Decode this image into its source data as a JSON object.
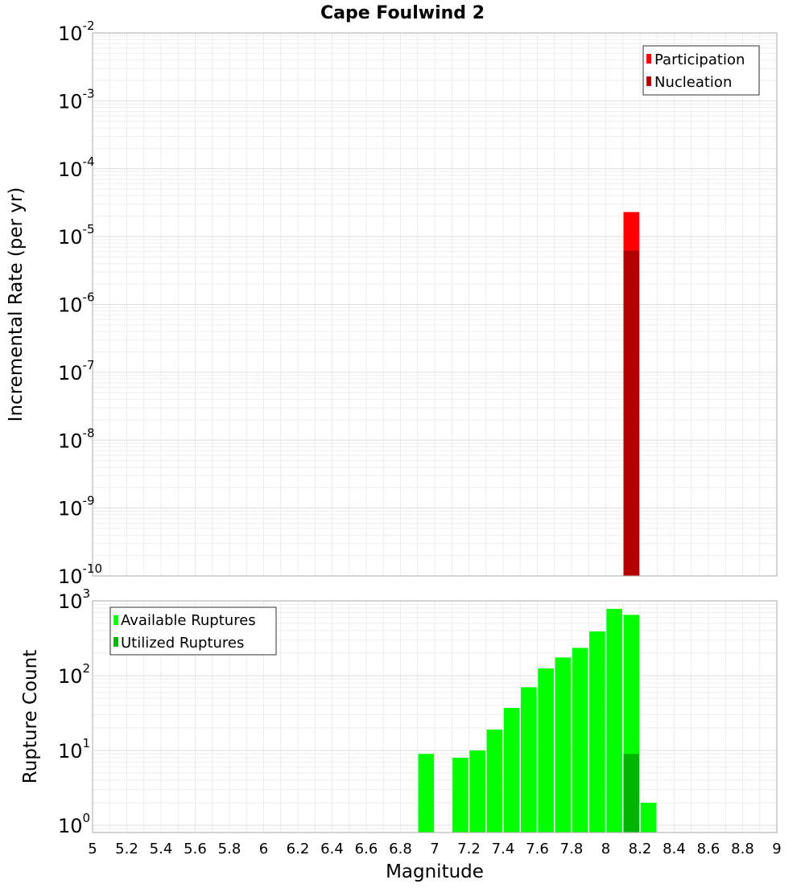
{
  "chart_data": [
    {
      "type": "bar",
      "title": "Cape Foulwind 2",
      "xlabel": "",
      "ylabel": "Incremental Rate (per yr)",
      "yscale": "log",
      "xlim": [
        5,
        9
      ],
      "ylim": [
        1e-10,
        0.01
      ],
      "grid": true,
      "legend_position": "top-right",
      "y_tick_labels": [
        {
          "base": "10",
          "exp": "-10",
          "value": 1e-10
        },
        {
          "base": "10",
          "exp": "-9",
          "value": 1e-09
        },
        {
          "base": "10",
          "exp": "-8",
          "value": 1e-08
        },
        {
          "base": "10",
          "exp": "-7",
          "value": 1e-07
        },
        {
          "base": "10",
          "exp": "-6",
          "value": 1e-06
        },
        {
          "base": "10",
          "exp": "-5",
          "value": 1e-05
        },
        {
          "base": "10",
          "exp": "-4",
          "value": 0.0001
        },
        {
          "base": "10",
          "exp": "-3",
          "value": 0.001
        },
        {
          "base": "10",
          "exp": "-2",
          "value": 0.01
        }
      ],
      "series": [
        {
          "name": "Participation",
          "color": "#ff0000",
          "x": [
            8.15
          ],
          "values": [
            2.3e-05
          ]
        },
        {
          "name": "Nucleation",
          "color": "#b40000",
          "x": [
            8.15
          ],
          "values": [
            6.2e-06
          ]
        }
      ]
    },
    {
      "type": "bar",
      "title": "",
      "xlabel": "Magnitude",
      "ylabel": "Rupture Count",
      "yscale": "log",
      "xlim": [
        5,
        9
      ],
      "ylim": [
        0.8,
        1000
      ],
      "grid": true,
      "legend_position": "top-left",
      "y_tick_labels": [
        {
          "base": "10",
          "exp": "0",
          "value": 1
        },
        {
          "base": "10",
          "exp": "1",
          "value": 10
        },
        {
          "base": "10",
          "exp": "2",
          "value": 100
        },
        {
          "base": "10",
          "exp": "3",
          "value": 1000
        }
      ],
      "x_tick_labels": [
        "5",
        "5.2",
        "5.4",
        "5.6",
        "5.8",
        "6",
        "6.2",
        "6.4",
        "6.6",
        "6.8",
        "7",
        "7.2",
        "7.4",
        "7.6",
        "7.8",
        "8",
        "8.2",
        "8.4",
        "8.6",
        "8.8",
        "9"
      ],
      "series": [
        {
          "name": "Available Ruptures",
          "color": "#00ff00",
          "x": [
            6.95,
            7.15,
            7.25,
            7.35,
            7.45,
            7.55,
            7.65,
            7.75,
            7.85,
            7.95,
            8.05,
            8.15,
            8.25
          ],
          "values": [
            9,
            8,
            10,
            19,
            37,
            70,
            125,
            175,
            235,
            390,
            780,
            650,
            2
          ]
        },
        {
          "name": "Utilized Ruptures",
          "color": "#00b400",
          "x": [
            8.15
          ],
          "values": [
            9
          ]
        }
      ]
    }
  ]
}
